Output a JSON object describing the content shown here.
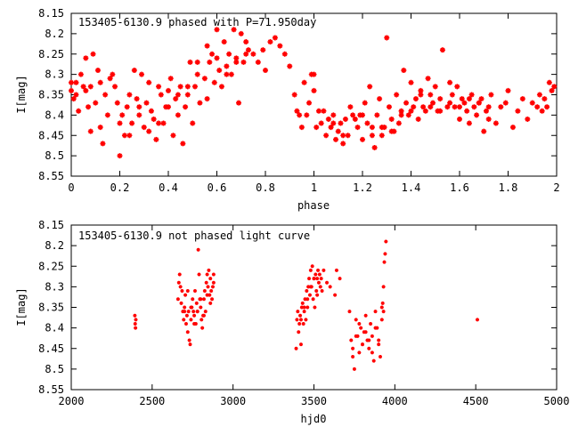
{
  "chart_data": [
    {
      "type": "scatter",
      "title": "153405-6130.9 phased with P=71.950day",
      "xlabel": "phase",
      "ylabel": "I[mag]",
      "xlim": [
        0,
        2
      ],
      "ylim": [
        8.15,
        8.55
      ],
      "y_inverted": true,
      "x_ticks": [
        "0",
        "0.2",
        "0.4",
        "0.6",
        "0.8",
        "1",
        "1.2",
        "1.4",
        "1.6",
        "1.8",
        "2"
      ],
      "y_ticks": [
        "8.15",
        "8.2",
        "8.25",
        "8.3",
        "8.35",
        "8.4",
        "8.45",
        "8.5",
        "8.55"
      ],
      "marker_color": "#ff0000",
      "grid": false,
      "series": [
        {
          "x": [
            0.0,
            0.01,
            0.02,
            0.03,
            0.05,
            0.06,
            0.07,
            0.08,
            0.09,
            0.1,
            0.11,
            0.12,
            0.13,
            0.14,
            0.15,
            0.17,
            0.18,
            0.19,
            0.2,
            0.21,
            0.22,
            0.23,
            0.24,
            0.25,
            0.26,
            0.27,
            0.28,
            0.29,
            0.3,
            0.31,
            0.32,
            0.33,
            0.34,
            0.35,
            0.36,
            0.37,
            0.38,
            0.39,
            0.4,
            0.41,
            0.42,
            0.43,
            0.44,
            0.45,
            0.46,
            0.47,
            0.48,
            0.49,
            0.5,
            0.51,
            0.52,
            0.53,
            0.55,
            0.56,
            0.57,
            0.58,
            0.59,
            0.6,
            0.61,
            0.62,
            0.63,
            0.64,
            0.65,
            0.66,
            0.67,
            0.68,
            0.69,
            0.7,
            0.71,
            0.72,
            0.73,
            0.75,
            0.77,
            0.79,
            0.8,
            0.82,
            0.84,
            0.86,
            0.88,
            0.9,
            0.92,
            0.93,
            0.94,
            0.95,
            0.96,
            0.97,
            0.98,
            0.99,
            1.0,
            1.01,
            1.02,
            1.03,
            1.05,
            1.06,
            1.07,
            1.08,
            1.09,
            1.1,
            1.11,
            1.12,
            1.13,
            1.14,
            1.15,
            1.17,
            1.18,
            1.19,
            1.2,
            1.21,
            1.22,
            1.23,
            1.24,
            1.25,
            1.26,
            1.27,
            1.28,
            1.29,
            1.3,
            1.31,
            1.32,
            1.33,
            1.34,
            1.35,
            1.36,
            1.37,
            1.38,
            1.39,
            1.4,
            1.41,
            1.42,
            1.43,
            1.44,
            1.45,
            1.46,
            1.47,
            1.48,
            1.49,
            1.5,
            1.51,
            1.52,
            1.53,
            1.55,
            1.56,
            1.57,
            1.58,
            1.59,
            1.6,
            1.61,
            1.62,
            1.63,
            1.64,
            1.65,
            1.66,
            1.67,
            1.68,
            1.69,
            1.7,
            1.71,
            1.72,
            1.73,
            1.75,
            1.77,
            1.79,
            1.8,
            1.82,
            1.84,
            1.86,
            1.88,
            1.9,
            1.92,
            1.93,
            1.94,
            1.95,
            1.96,
            1.97,
            1.98,
            1.99,
            0.0,
            0.02,
            0.04,
            0.06,
            0.08,
            0.12,
            0.16,
            0.2,
            0.24,
            0.28,
            0.32,
            0.36,
            0.4,
            0.44,
            0.48,
            0.52,
            0.56,
            0.6,
            0.64,
            0.68,
            0.72,
            1.0,
            1.04,
            1.08,
            1.12,
            1.16,
            1.2,
            1.24,
            1.28,
            1.32,
            1.36,
            1.4,
            1.44,
            1.48,
            1.52,
            1.56,
            1.6,
            1.64,
            1.68,
            1.72
          ],
          "y": [
            8.34,
            8.36,
            8.32,
            8.39,
            8.33,
            8.26,
            8.38,
            8.33,
            8.25,
            8.37,
            8.29,
            8.32,
            8.47,
            8.35,
            8.4,
            8.3,
            8.33,
            8.37,
            8.5,
            8.4,
            8.45,
            8.38,
            8.35,
            8.42,
            8.29,
            8.36,
            8.4,
            8.3,
            8.43,
            8.37,
            8.44,
            8.39,
            8.41,
            8.46,
            8.33,
            8.35,
            8.42,
            8.38,
            8.34,
            8.31,
            8.45,
            8.36,
            8.4,
            8.33,
            8.47,
            8.38,
            8.35,
            8.27,
            8.42,
            8.33,
            8.3,
            8.37,
            8.31,
            8.36,
            8.27,
            8.25,
            8.32,
            8.19,
            8.29,
            8.33,
            8.22,
            8.28,
            8.25,
            8.3,
            8.19,
            8.26,
            8.37,
            8.2,
            8.27,
            8.22,
            8.24,
            8.25,
            8.27,
            8.24,
            8.29,
            8.22,
            8.21,
            8.23,
            8.25,
            8.28,
            8.35,
            8.39,
            8.4,
            8.43,
            8.32,
            8.4,
            8.37,
            8.3,
            8.34,
            8.43,
            8.39,
            8.42,
            8.45,
            8.41,
            8.43,
            8.4,
            8.46,
            8.44,
            8.42,
            8.47,
            8.41,
            8.45,
            8.38,
            8.41,
            8.43,
            8.4,
            8.46,
            8.37,
            8.42,
            8.33,
            8.45,
            8.48,
            8.4,
            8.36,
            8.45,
            8.43,
            8.21,
            8.38,
            8.41,
            8.44,
            8.35,
            8.42,
            8.39,
            8.29,
            8.37,
            8.4,
            8.32,
            8.38,
            8.36,
            8.41,
            8.34,
            8.38,
            8.39,
            8.31,
            8.35,
            8.37,
            8.33,
            8.39,
            8.36,
            8.24,
            8.38,
            8.32,
            8.35,
            8.38,
            8.33,
            8.41,
            8.36,
            8.37,
            8.39,
            8.42,
            8.35,
            8.38,
            8.4,
            8.37,
            8.36,
            8.44,
            8.39,
            8.41,
            8.35,
            8.42,
            8.38,
            8.37,
            8.34,
            8.43,
            8.39,
            8.36,
            8.41,
            8.37,
            8.38,
            8.35,
            8.39,
            8.36,
            8.38,
            8.32,
            8.34,
            8.33,
            8.32,
            8.35,
            8.3,
            8.34,
            8.44,
            8.43,
            8.31,
            8.42,
            8.45,
            8.38,
            8.32,
            8.42,
            8.38,
            8.35,
            8.33,
            8.27,
            8.23,
            8.26,
            8.3,
            8.27,
            8.25,
            8.3,
            8.39,
            8.42,
            8.45,
            8.4,
            8.4,
            8.43,
            8.43,
            8.44,
            8.4,
            8.39,
            8.35,
            8.38,
            8.39,
            8.37,
            8.38,
            8.36,
            8.37,
            8.38
          ]
        }
      ]
    },
    {
      "type": "scatter",
      "title": "153405-6130.9 not phased light curve",
      "xlabel": "hjd0",
      "ylabel": "I[mag]",
      "xlim": [
        2000,
        5000
      ],
      "ylim": [
        8.15,
        8.55
      ],
      "y_inverted": true,
      "x_ticks": [
        "2000",
        "2500",
        "3000",
        "3500",
        "4000",
        "4500",
        "5000"
      ],
      "y_ticks": [
        "8.15",
        "8.2",
        "8.25",
        "8.3",
        "8.35",
        "8.4",
        "8.45",
        "8.5",
        "8.55"
      ],
      "marker_color": "#ff0000",
      "grid": false,
      "series": [
        {
          "x": [
            2393,
            2395,
            2397,
            2399,
            2660,
            2665,
            2670,
            2675,
            2680,
            2685,
            2690,
            2695,
            2700,
            2705,
            2710,
            2715,
            2720,
            2725,
            2730,
            2735,
            2740,
            2745,
            2750,
            2755,
            2760,
            2765,
            2770,
            2775,
            2780,
            2785,
            2790,
            2795,
            2800,
            2805,
            2810,
            2815,
            2820,
            2825,
            2830,
            2835,
            2840,
            2845,
            2850,
            2855,
            2860,
            2865,
            2870,
            2875,
            2880,
            3390,
            3395,
            3400,
            3405,
            3410,
            3415,
            3420,
            3425,
            3430,
            3435,
            3440,
            3445,
            3450,
            3455,
            3460,
            3465,
            3470,
            3475,
            3480,
            3485,
            3490,
            3495,
            3500,
            3505,
            3510,
            3515,
            3520,
            3525,
            3530,
            3535,
            3540,
            3545,
            3550,
            3560,
            3580,
            3600,
            3630,
            3640,
            3660,
            3720,
            3730,
            3740,
            3750,
            3760,
            3770,
            3780,
            3790,
            3800,
            3810,
            3820,
            3830,
            3840,
            3850,
            3860,
            3870,
            3880,
            3890,
            3900,
            3910,
            3920,
            3925,
            3930,
            3935,
            3940,
            3945,
            4510,
            2700,
            2720,
            2740,
            2760,
            2780,
            2800,
            2820,
            2840,
            2860,
            2880,
            3420,
            3440,
            3460,
            3480,
            3500,
            3520,
            3740,
            3760,
            3780,
            3800,
            3820,
            3840,
            3860,
            3880,
            3900,
            3920,
            3930
          ],
          "y": [
            8.37,
            8.39,
            8.4,
            8.38,
            8.33,
            8.29,
            8.27,
            8.3,
            8.34,
            8.31,
            8.36,
            8.38,
            8.35,
            8.32,
            8.39,
            8.37,
            8.41,
            8.36,
            8.43,
            8.44,
            8.38,
            8.35,
            8.33,
            8.36,
            8.37,
            8.31,
            8.39,
            8.34,
            8.36,
            8.21,
            8.27,
            8.33,
            8.35,
            8.38,
            8.4,
            8.37,
            8.33,
            8.31,
            8.36,
            8.29,
            8.27,
            8.3,
            8.26,
            8.32,
            8.28,
            8.31,
            8.33,
            8.3,
            8.27,
            8.45,
            8.38,
            8.36,
            8.41,
            8.39,
            8.37,
            8.44,
            8.35,
            8.34,
            8.39,
            8.36,
            8.33,
            8.38,
            8.31,
            8.35,
            8.3,
            8.28,
            8.32,
            8.26,
            8.3,
            8.25,
            8.33,
            8.28,
            8.35,
            8.27,
            8.31,
            8.28,
            8.26,
            8.29,
            8.27,
            8.3,
            8.28,
            8.31,
            8.26,
            8.29,
            8.3,
            8.32,
            8.26,
            8.28,
            8.36,
            8.43,
            8.47,
            8.5,
            8.38,
            8.42,
            8.46,
            8.4,
            8.44,
            8.41,
            8.37,
            8.43,
            8.45,
            8.39,
            8.42,
            8.48,
            8.36,
            8.4,
            8.44,
            8.47,
            8.38,
            8.34,
            8.36,
            8.24,
            8.22,
            8.19,
            8.38,
            8.36,
            8.31,
            8.35,
            8.39,
            8.36,
            8.33,
            8.37,
            8.32,
            8.34,
            8.29,
            8.38,
            8.35,
            8.33,
            8.3,
            8.28,
            8.32,
            8.45,
            8.42,
            8.39,
            8.44,
            8.41,
            8.43,
            8.46,
            8.4,
            8.43,
            8.35,
            8.3
          ]
        }
      ]
    }
  ]
}
